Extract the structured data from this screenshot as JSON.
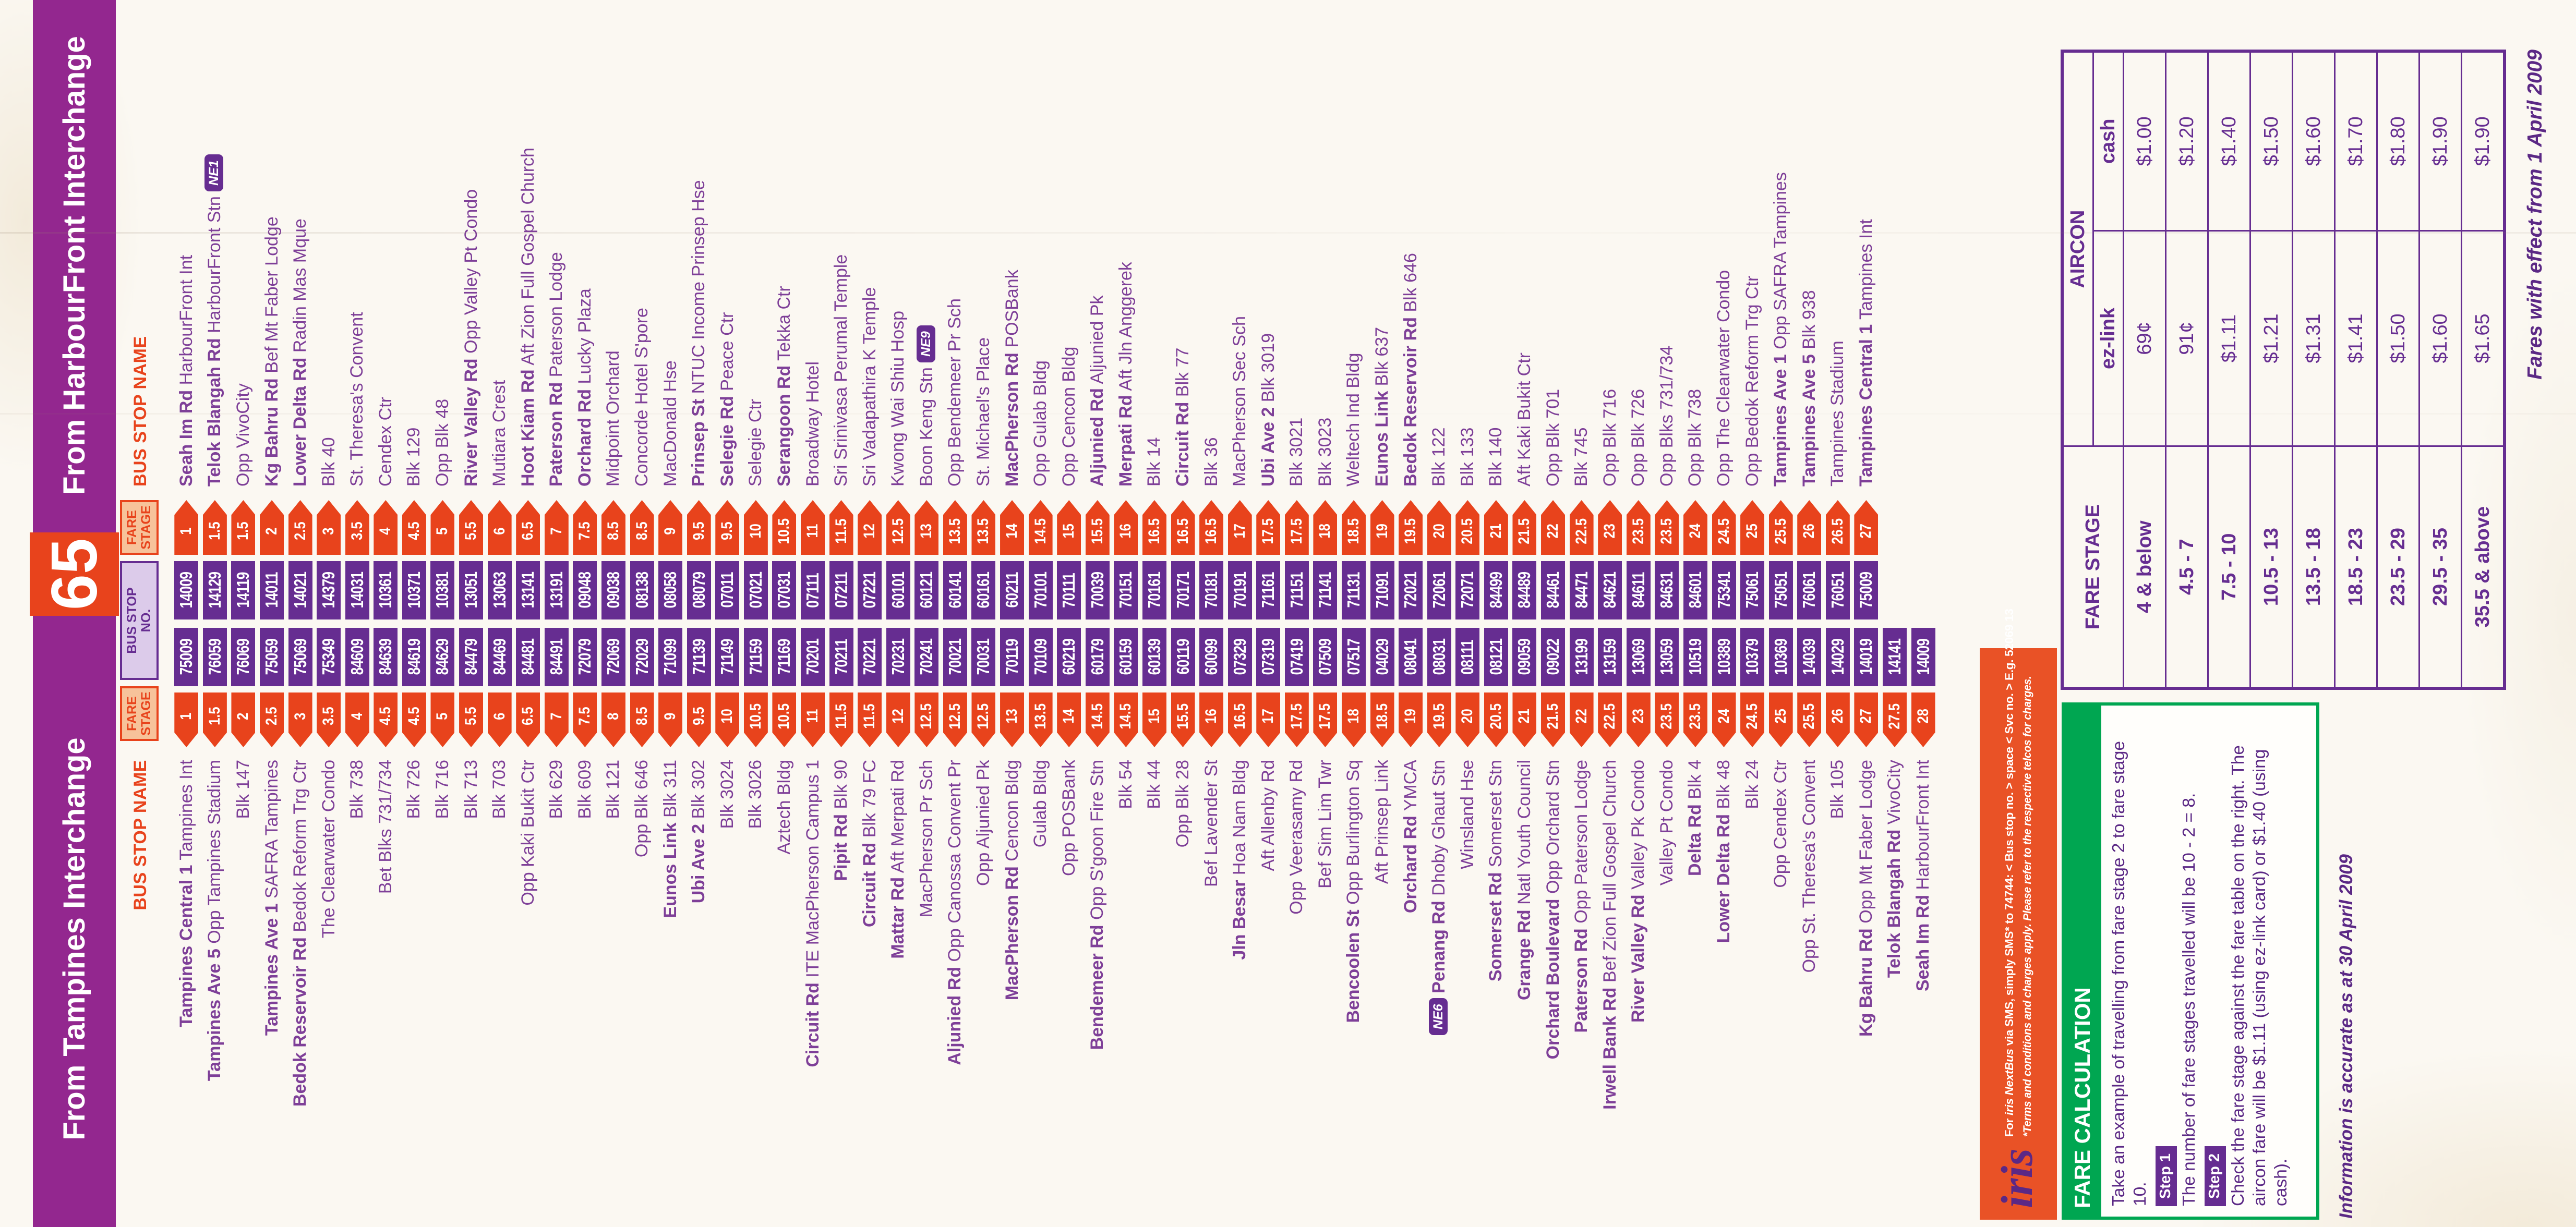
{
  "colors": {
    "purple_band": "#93278F",
    "deep_purple": "#662D91",
    "name_purple": "#7E3F98",
    "body_purple": "#5B2885",
    "iris_purple": "#5B2885",
    "orange_red": "#E8431C",
    "strip_orange": "#E95226",
    "light_orange_fill": "#F7C29A",
    "lavender_fill": "#DCCBEA",
    "green": "#00A651",
    "paper": "#FBF8F2"
  },
  "header": {
    "left_bar": "From Tampines Interchange",
    "service_number": "65",
    "right_bar": "From HarbourFront Interchange"
  },
  "column_headers": {
    "bus_stop_name": "BUS STOP NAME",
    "fare_stage": "FARE STAGE",
    "bus_stop_no": "BUS STOP NO."
  },
  "stops": {
    "tampines": [
      {
        "b": "Tampines Central 1",
        "r": "Tampines Int",
        "s": "1",
        "n": "75009"
      },
      {
        "b": "Tampines Ave 5",
        "r": "Opp Tampines Stadium",
        "s": "1.5",
        "n": "76059"
      },
      {
        "b": "",
        "r": "Blk 147",
        "s": "2",
        "n": "76069"
      },
      {
        "b": "Tampines Ave 1",
        "r": "SAFRA Tampines",
        "s": "2.5",
        "n": "75059"
      },
      {
        "b": "Bedok Reservoir Rd",
        "r": "Bedok Reform Trg Ctr",
        "s": "3",
        "n": "75069"
      },
      {
        "b": "",
        "r": "The Clearwater Condo",
        "s": "3.5",
        "n": "75349"
      },
      {
        "b": "",
        "r": "Blk 738",
        "s": "4",
        "n": "84609"
      },
      {
        "b": "",
        "r": "Bet Blks 731/734",
        "s": "4.5",
        "n": "84639"
      },
      {
        "b": "",
        "r": "Blk 726",
        "s": "4.5",
        "n": "84619"
      },
      {
        "b": "",
        "r": "Blk 716",
        "s": "5",
        "n": "84629"
      },
      {
        "b": "",
        "r": "Blk 713",
        "s": "5.5",
        "n": "84479"
      },
      {
        "b": "",
        "r": "Blk 703",
        "s": "6",
        "n": "84469"
      },
      {
        "b": "",
        "r": "Opp Kaki Bukit Ctr",
        "s": "6.5",
        "n": "84481"
      },
      {
        "b": "",
        "r": "Blk 629",
        "s": "7",
        "n": "84491"
      },
      {
        "b": "",
        "r": "Blk 609",
        "s": "7.5",
        "n": "72079"
      },
      {
        "b": "",
        "r": "Blk 121",
        "s": "8",
        "n": "72069"
      },
      {
        "b": "",
        "r": "Opp Blk 646",
        "s": "8.5",
        "n": "72029"
      },
      {
        "b": "Eunos Link",
        "r": "Blk 311",
        "s": "9",
        "n": "71099"
      },
      {
        "b": "Ubi Ave 2",
        "r": "Blk 302",
        "s": "9.5",
        "n": "71139"
      },
      {
        "b": "",
        "r": "Blk 3024",
        "s": "10",
        "n": "71149"
      },
      {
        "b": "",
        "r": "Blk 3026",
        "s": "10.5",
        "n": "71159"
      },
      {
        "b": "",
        "r": "Aztech Bldg",
        "s": "10.5",
        "n": "71169"
      },
      {
        "b": "Circuit Rd",
        "r": "ITE MacPherson Campus 1",
        "s": "11",
        "n": "70201"
      },
      {
        "b": "Pipit Rd",
        "r": "Blk 90",
        "s": "11.5",
        "n": "70211"
      },
      {
        "b": "Circuit Rd",
        "r": "Blk 79 FC",
        "s": "11.5",
        "n": "70221"
      },
      {
        "b": "Mattar Rd",
        "r": "Aft Merpati Rd",
        "s": "12",
        "n": "70231"
      },
      {
        "b": "",
        "r": "MacPherson Pr Sch",
        "s": "12.5",
        "n": "70241"
      },
      {
        "b": "Aljunied Rd",
        "r": "Opp Canossa Convent Pr",
        "s": "12.5",
        "n": "70021"
      },
      {
        "b": "",
        "r": "Opp Aljunied Pk",
        "s": "12.5",
        "n": "70031"
      },
      {
        "b": "MacPherson Rd",
        "r": "Cencon Bldg",
        "s": "13",
        "n": "70119"
      },
      {
        "b": "",
        "r": "Gulab Bldg",
        "s": "13.5",
        "n": "70109"
      },
      {
        "b": "",
        "r": "Opp POSBank",
        "s": "14",
        "n": "60219"
      },
      {
        "b": "Bendemeer Rd",
        "r": "Opp S'goon Fire Stn",
        "s": "14.5",
        "n": "60179"
      },
      {
        "b": "",
        "r": "Blk 54",
        "s": "14.5",
        "n": "60159"
      },
      {
        "b": "",
        "r": "Blk 44",
        "s": "15",
        "n": "60139"
      },
      {
        "b": "",
        "r": "Opp Blk 28",
        "s": "15.5",
        "n": "60119"
      },
      {
        "b": "",
        "r": "Bef Lavender St",
        "s": "16",
        "n": "60099"
      },
      {
        "b": "Jln Besar",
        "r": "Hoa Nam Bldg",
        "s": "16.5",
        "n": "07329"
      },
      {
        "b": "",
        "r": "Aft Allenby Rd",
        "s": "17",
        "n": "07319"
      },
      {
        "b": "",
        "r": "Opp Veerasamy Rd",
        "s": "17.5",
        "n": "07419"
      },
      {
        "b": "",
        "r": "Bef Sim Lim Twr",
        "s": "17.5",
        "n": "07509"
      },
      {
        "b": "Bencoolen St",
        "r": "Opp Burlington Sq",
        "s": "18",
        "n": "07517"
      },
      {
        "b": "",
        "r": "Aft Prinsep Link",
        "s": "18.5",
        "n": "04029"
      },
      {
        "b": "Orchard Rd",
        "r": "YMCA",
        "s": "19",
        "n": "08041"
      },
      {
        "tag": "NE6",
        "b": "Penang Rd",
        "r": "Dhoby Ghaut Stn",
        "s": "19.5",
        "n": "08031"
      },
      {
        "b": "",
        "r": "Winsland Hse",
        "s": "20",
        "n": "08111"
      },
      {
        "b": "Somerset Rd",
        "r": "Somerset Stn",
        "s": "20.5",
        "n": "08121"
      },
      {
        "b": "Grange Rd",
        "r": "Natl Youth Council",
        "s": "21",
        "n": "09059"
      },
      {
        "b": "Orchard Boulevard",
        "r": "Opp Orchard Stn",
        "s": "21.5",
        "n": "09022"
      },
      {
        "b": "Paterson Rd",
        "r": "Opp Paterson Lodge",
        "s": "22",
        "n": "13199"
      },
      {
        "b": "Irwell Bank Rd",
        "r": "Bef Zion Full Gospel Church",
        "s": "22.5",
        "n": "13159"
      },
      {
        "b": "River Valley Rd",
        "r": "Valley Pk Condo",
        "s": "23",
        "n": "13069"
      },
      {
        "b": "",
        "r": "Valley Pt Condo",
        "s": "23.5",
        "n": "13059"
      },
      {
        "b": "Delta Rd",
        "r": "Blk 4",
        "s": "23.5",
        "n": "10519"
      },
      {
        "b": "Lower Delta Rd",
        "r": "Blk 48",
        "s": "24",
        "n": "10389"
      },
      {
        "b": "",
        "r": "Blk 24",
        "s": "24.5",
        "n": "10379"
      },
      {
        "b": "",
        "r": "Opp Cendex Ctr",
        "s": "25",
        "n": "10369"
      },
      {
        "b": "",
        "r": "Opp St. Theresa's Convent",
        "s": "25.5",
        "n": "14039"
      },
      {
        "b": "",
        "r": "Blk 105",
        "s": "26",
        "n": "14029"
      },
      {
        "b": "Kg Bahru Rd",
        "r": "Opp Mt Faber Lodge",
        "s": "27",
        "n": "14019"
      },
      {
        "b": "Telok Blangah Rd",
        "r": "VivoCity",
        "s": "27.5",
        "n": "14141"
      },
      {
        "b": "Seah Im Rd",
        "r": "HarbourFront Int",
        "s": "28",
        "n": "14009"
      }
    ],
    "harbourfront": [
      {
        "b": "Seah Im Rd",
        "r": "HarbourFront Int",
        "s": "1",
        "n": "14009"
      },
      {
        "b": "Telok Blangah Rd",
        "r": "HarbourFront Stn",
        "tag": "NE1",
        "s": "1.5",
        "n": "14129"
      },
      {
        "b": "",
        "r": "Opp VivoCity",
        "s": "1.5",
        "n": "14119"
      },
      {
        "b": "Kg Bahru Rd",
        "r": "Bef Mt Faber Lodge",
        "s": "2",
        "n": "14011"
      },
      {
        "b": "Lower Delta Rd",
        "r": "Radin Mas Mque",
        "s": "2.5",
        "n": "14021"
      },
      {
        "b": "",
        "r": "Blk 40",
        "s": "3",
        "n": "14379"
      },
      {
        "b": "",
        "r": "St. Theresa's Convent",
        "s": "3.5",
        "n": "14031"
      },
      {
        "b": "",
        "r": "Cendex Ctr",
        "s": "4",
        "n": "10361"
      },
      {
        "b": "",
        "r": "Blk 129",
        "s": "4.5",
        "n": "10371"
      },
      {
        "b": "",
        "r": "Opp Blk 48",
        "s": "5",
        "n": "10381"
      },
      {
        "b": "River Valley Rd",
        "r": "Opp Valley Pt Condo",
        "s": "5.5",
        "n": "13051"
      },
      {
        "b": "",
        "r": "Mutiara Crest",
        "s": "6",
        "n": "13063"
      },
      {
        "b": "Hoot Kiam Rd",
        "r": "Aft Zion Full Gospel Church",
        "s": "6.5",
        "n": "13141"
      },
      {
        "b": "Paterson Rd",
        "r": "Paterson Lodge",
        "s": "7",
        "n": "13191"
      },
      {
        "b": "Orchard Rd",
        "r": "Lucky Plaza",
        "s": "7.5",
        "n": "09048"
      },
      {
        "b": "",
        "r": "Midpoint Orchard",
        "s": "8.5",
        "n": "09038"
      },
      {
        "b": "",
        "r": "Concorde Hotel S'pore",
        "s": "8.5",
        "n": "08138"
      },
      {
        "b": "",
        "r": "MacDonald Hse",
        "s": "9",
        "n": "08058"
      },
      {
        "b": "Prinsep St",
        "r": "NTUC Income Prinsep Hse",
        "s": "9.5",
        "n": "08079"
      },
      {
        "b": "Selegie Rd",
        "r": "Peace Ctr",
        "s": "9.5",
        "n": "07011"
      },
      {
        "b": "",
        "r": "Selegie Ctr",
        "s": "10",
        "n": "07021"
      },
      {
        "b": "Serangoon Rd",
        "r": "Tekka Ctr",
        "s": "10.5",
        "n": "07031"
      },
      {
        "b": "",
        "r": "Broadway Hotel",
        "s": "11",
        "n": "07111"
      },
      {
        "b": "",
        "r": "Sri Srinivasa Perumal Temple",
        "s": "11.5",
        "n": "07211"
      },
      {
        "b": "",
        "r": "Sri Vadapathira K Temple",
        "s": "12",
        "n": "07221"
      },
      {
        "b": "",
        "r": "Kwong Wai Shiu Hosp",
        "s": "12.5",
        "n": "60101"
      },
      {
        "b": "",
        "r": "Boon Keng Stn",
        "tag": "NE9",
        "s": "13",
        "n": "60121"
      },
      {
        "b": "",
        "r": "Opp Bendemeer Pr Sch",
        "s": "13.5",
        "n": "60141"
      },
      {
        "b": "",
        "r": "St. Michael's Place",
        "s": "13.5",
        "n": "60161"
      },
      {
        "b": "MacPherson Rd",
        "r": "POSBank",
        "s": "14",
        "n": "60211"
      },
      {
        "b": "",
        "r": "Opp Gulab Bldg",
        "s": "14.5",
        "n": "70101"
      },
      {
        "b": "",
        "r": "Opp Cencon Bldg",
        "s": "15",
        "n": "70111"
      },
      {
        "b": "Aljunied Rd",
        "r": "Aljunied Pk",
        "s": "15.5",
        "n": "70039"
      },
      {
        "b": "Merpati Rd",
        "r": "Aft Jln Anggerek",
        "s": "16",
        "n": "70151"
      },
      {
        "b": "",
        "r": "Blk 14",
        "s": "16.5",
        "n": "70161"
      },
      {
        "b": "Circuit Rd",
        "r": "Blk 77",
        "s": "16.5",
        "n": "70171"
      },
      {
        "b": "",
        "r": "Blk 36",
        "s": "16.5",
        "n": "70181"
      },
      {
        "b": "",
        "r": "MacPherson Sec Sch",
        "s": "17",
        "n": "70191"
      },
      {
        "b": "Ubi Ave 2",
        "r": "Blk 3019",
        "s": "17.5",
        "n": "71161"
      },
      {
        "b": "",
        "r": "Blk 3021",
        "s": "17.5",
        "n": "71151"
      },
      {
        "b": "",
        "r": "Blk 3023",
        "s": "18",
        "n": "71141"
      },
      {
        "b": "",
        "r": "Weltech Ind Bldg",
        "s": "18.5",
        "n": "71131"
      },
      {
        "b": "Eunos Link",
        "r": "Blk 637",
        "s": "19",
        "n": "71091"
      },
      {
        "b": "Bedok Reservoir Rd",
        "r": "Blk 646",
        "s": "19.5",
        "n": "72021"
      },
      {
        "b": "",
        "r": "Blk 122",
        "s": "20",
        "n": "72061"
      },
      {
        "b": "",
        "r": "Blk 133",
        "s": "20.5",
        "n": "72071"
      },
      {
        "b": "",
        "r": "Blk 140",
        "s": "21",
        "n": "84499"
      },
      {
        "b": "",
        "r": "Aft Kaki Bukit Ctr",
        "s": "21.5",
        "n": "84489"
      },
      {
        "b": "",
        "r": "Opp Blk 701",
        "s": "22",
        "n": "84461"
      },
      {
        "b": "",
        "r": "Blk 745",
        "s": "22.5",
        "n": "84471"
      },
      {
        "b": "",
        "r": "Opp Blk 716",
        "s": "23",
        "n": "84621"
      },
      {
        "b": "",
        "r": "Opp Blk 726",
        "s": "23.5",
        "n": "84611"
      },
      {
        "b": "",
        "r": "Opp Blks 731/734",
        "s": "23.5",
        "n": "84631"
      },
      {
        "b": "",
        "r": "Opp Blk 738",
        "s": "24",
        "n": "84601"
      },
      {
        "b": "",
        "r": "Opp The Clearwater Condo",
        "s": "24.5",
        "n": "75341"
      },
      {
        "b": "",
        "r": "Opp Bedok Reform Trg Ctr",
        "s": "25",
        "n": "75061"
      },
      {
        "b": "Tampines Ave 1",
        "r": "Opp SAFRA Tampines",
        "s": "25.5",
        "n": "75051"
      },
      {
        "b": "Tampines Ave 5",
        "r": "Blk 938",
        "s": "26",
        "n": "76061"
      },
      {
        "b": "",
        "r": "Tampines Stadium",
        "s": "26.5",
        "n": "76051"
      },
      {
        "b": "Tampines Central 1",
        "r": "Tampines Int",
        "s": "27",
        "n": "75009"
      }
    ]
  },
  "iris_strip": {
    "logo": "iris",
    "line1_prefix": "For ",
    "line1_brand": "iris NextBus",
    "line1_rest": " via SMS, simply SMS* to 74744: < Bus stop no. > space < Svc no. > E.g. 52069 13",
    "line2": "*Terms and conditions and charges apply. Please refer to the respective telcos for charges."
  },
  "fare_calculation": {
    "title": "FARE CALCULATION",
    "intro": "Take an example of travelling from fare stage 2 to fare stage 10.",
    "step1_label": "Step 1",
    "step1_text": "The number of fare stages travelled will be 10 - 2 = 8.",
    "step2_label": "Step 2",
    "step2_text": "Check the fare stage against the fare table on the right. The aircon fare will be $1.11 (using ez-link card) or $1.40 (using cash)."
  },
  "fare_table": {
    "col1_header": "FARE STAGE",
    "group_header": "AIRCON",
    "sub_headers": [
      "ez-link",
      "cash"
    ],
    "rows": [
      {
        "stage": "4 & below",
        "ezlink": "69¢",
        "cash": "$1.00"
      },
      {
        "stage": "4.5 - 7",
        "ezlink": "91¢",
        "cash": "$1.20"
      },
      {
        "stage": "7.5 - 10",
        "ezlink": "$1.11",
        "cash": "$1.40"
      },
      {
        "stage": "10.5 - 13",
        "ezlink": "$1.21",
        "cash": "$1.50"
      },
      {
        "stage": "13.5 - 18",
        "ezlink": "$1.31",
        "cash": "$1.60"
      },
      {
        "stage": "18.5 - 23",
        "ezlink": "$1.41",
        "cash": "$1.70"
      },
      {
        "stage": "23.5 - 29",
        "ezlink": "$1.50",
        "cash": "$1.80"
      },
      {
        "stage": "29.5 - 35",
        "ezlink": "$1.60",
        "cash": "$1.90"
      },
      {
        "stage": "35.5 & above",
        "ezlink": "$1.65",
        "cash": "$1.90"
      }
    ]
  },
  "footnotes": {
    "info": "Information is accurate as at 30 April 2009",
    "effect": "Fares with effect from 1 April 2009"
  }
}
